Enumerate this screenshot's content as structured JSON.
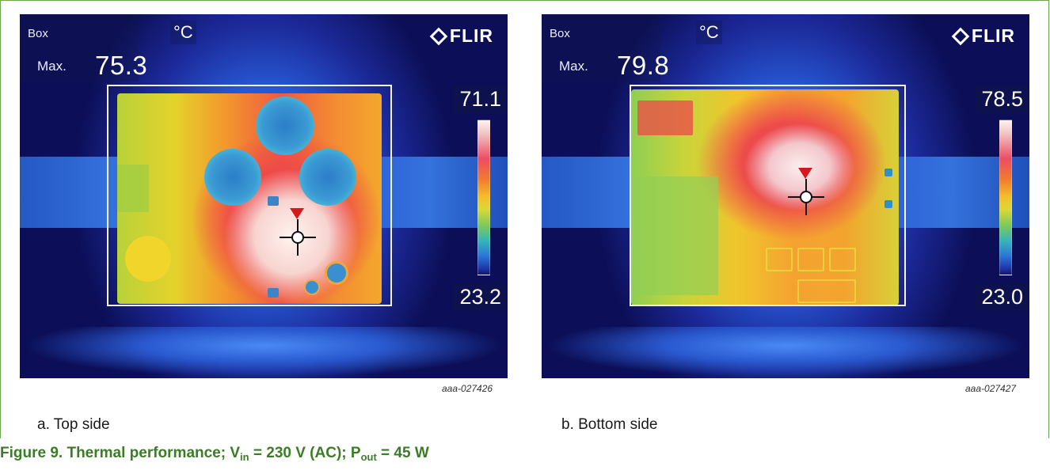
{
  "figure": {
    "caption_prefix": "Figure 9.  Thermal performance; V",
    "caption_vin_sub": "in",
    "caption_mid": " = 230 V (AC); P",
    "caption_pout_sub": "out",
    "caption_end": " = 45 W"
  },
  "panels": [
    {
      "id": "a",
      "box_label": "Box",
      "unit": "°C",
      "max_label": "Max.",
      "max_value": "75.3",
      "brand": "FLIR",
      "scale_top": "71.1",
      "scale_bottom": "23.2",
      "code": "aaa-027426",
      "caption": "a. Top side"
    },
    {
      "id": "b",
      "box_label": "Box",
      "unit": "°C",
      "max_label": "Max.",
      "max_value": "79.8",
      "brand": "FLIR",
      "scale_top": "78.5",
      "scale_bottom": "23.0",
      "code": "aaa-027427",
      "caption": "b. Bottom side"
    }
  ],
  "colors": {
    "caption_green": "#3a7d26",
    "frame_green": "#6aa84f"
  },
  "icons": [
    "flir-logo-icon",
    "crosshair-icon",
    "hotspot-marker-icon"
  ]
}
